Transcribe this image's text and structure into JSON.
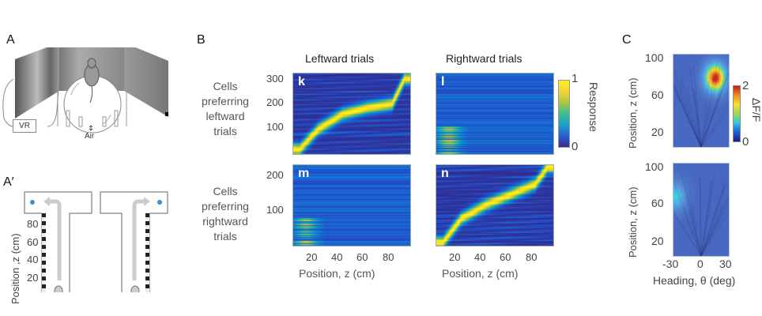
{
  "panels": {
    "A": {
      "label": "A",
      "vr_box": "VR",
      "air_label": "Air"
    },
    "A_prime": {
      "label": "A′",
      "ylabel": "Position ,z (cm)",
      "yticks": [
        "80",
        "60",
        "40",
        "20"
      ]
    },
    "B": {
      "label": "B",
      "col_titles": [
        "Leftward trials",
        "Rightward trials"
      ],
      "row_labels": [
        "Cells preferring leftward trials",
        "Cells preferring rightward trials"
      ],
      "row_label_lines": [
        [
          "Cells",
          "preferring",
          "leftward",
          "trials"
        ],
        [
          "Cells",
          "preferring",
          "rightward",
          "trials"
        ]
      ],
      "top_yticks": [
        "300",
        "200",
        "100"
      ],
      "bottom_yticks": [
        "200",
        "100"
      ],
      "xticks": [
        "20",
        "40",
        "60",
        "80"
      ],
      "xlabel": "Position, z (cm)",
      "subpanels": [
        "k",
        "l",
        "m",
        "n"
      ],
      "colorbar": {
        "label": "Response",
        "min": "0",
        "max": "1"
      }
    },
    "C": {
      "label": "C",
      "ylabel": "Position, z (cm)",
      "yticks": [
        "100",
        "60",
        "20"
      ],
      "xticks": [
        "-30",
        "0",
        "30"
      ],
      "xlabel": "Heading, θ (deg)",
      "colorbar": {
        "label": "ΔF/F",
        "min": "0",
        "max": "2"
      }
    }
  },
  "chart_data": [
    {
      "type": "heatmap",
      "title": "Leftward trials",
      "panel": "k",
      "ylabel": "Cells preferring leftward trials",
      "xlabel": "Position, z (cm)",
      "xlim": [
        0,
        95
      ],
      "ylim": [
        0,
        320
      ],
      "description": "sequential diagonal band of peak response from low position/low cell index to high position/high cell index",
      "peak_path": [
        [
          5,
          20
        ],
        [
          20,
          100
        ],
        [
          40,
          160
        ],
        [
          60,
          185
        ],
        [
          80,
          200
        ],
        [
          90,
          300
        ]
      ]
    },
    {
      "type": "heatmap",
      "title": "Rightward trials",
      "panel": "l",
      "ylabel": "Cells preferring leftward trials",
      "xlabel": "Position, z (cm)",
      "xlim": [
        0,
        95
      ],
      "ylim": [
        0,
        320
      ],
      "description": "mostly low response, weak activity at early positions for low-index cells"
    },
    {
      "type": "heatmap",
      "panel": "m",
      "ylabel": "Cells preferring rightward trials",
      "xlabel": "Position, z (cm)",
      "xlim": [
        0,
        95
      ],
      "ylim": [
        0,
        235
      ],
      "description": "mostly low response, weak activity at early positions for low-index cells"
    },
    {
      "type": "heatmap",
      "panel": "n",
      "ylabel": "Cells preferring rightward trials",
      "xlabel": "Position, z (cm)",
      "xlim": [
        0,
        95
      ],
      "ylim": [
        0,
        235
      ],
      "peak_path": [
        [
          5,
          10
        ],
        [
          20,
          80
        ],
        [
          40,
          120
        ],
        [
          60,
          150
        ],
        [
          80,
          180
        ],
        [
          90,
          230
        ]
      ]
    },
    {
      "type": "heatmap",
      "panel": "C-top",
      "xlabel": "Heading, θ (deg)",
      "ylabel": "Position, z (cm)",
      "xlim": [
        -30,
        30
      ],
      "ylim": [
        0,
        100
      ],
      "colorbar_range": [
        0,
        2
      ],
      "peak": {
        "heading": 15,
        "position": 75,
        "value": 2
      }
    },
    {
      "type": "heatmap",
      "panel": "C-bottom",
      "xlabel": "Heading, θ (deg)",
      "ylabel": "Position, z (cm)",
      "xlim": [
        -30,
        30
      ],
      "ylim": [
        0,
        100
      ],
      "colorbar_range": [
        0,
        2
      ],
      "peak": {
        "heading": -28,
        "position": 65,
        "value": 0.9
      }
    }
  ]
}
